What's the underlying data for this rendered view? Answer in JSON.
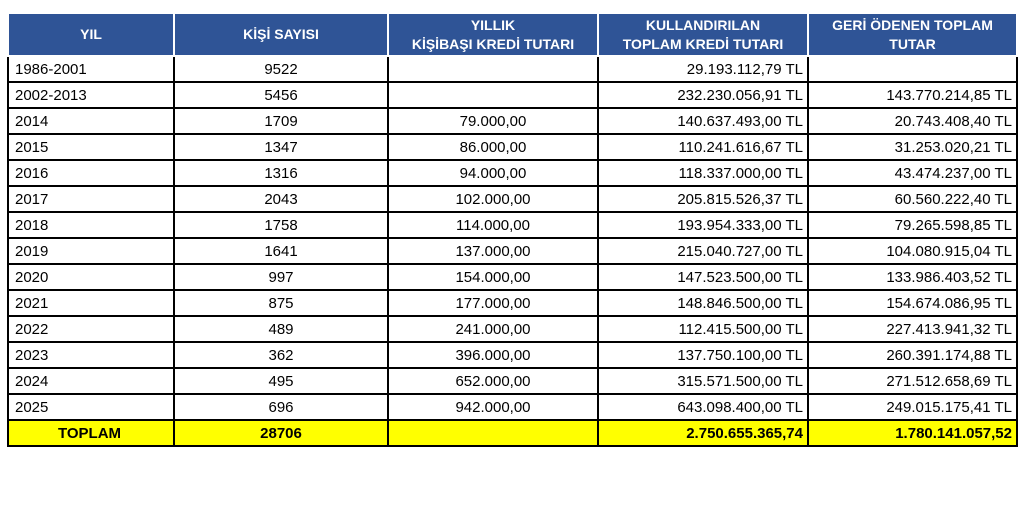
{
  "colors": {
    "header_bg": "#2F5496",
    "header_text": "#FFFFFF",
    "body_text": "#000000",
    "grid_border": "#000000",
    "totals_bg": "#FFFF00"
  },
  "chart_data": {
    "type": "table",
    "columns": [
      "YIL",
      "KİŞİ SAYISI",
      "YILLIK\nKİŞİBAŞI KREDİ TUTARI",
      "KULLANDIRILAN\nTOPLAM KREDİ TUTARI",
      "GERİ ÖDENEN TOPLAM\nTUTAR"
    ],
    "rows": [
      [
        "1986-2001",
        "9522",
        "",
        "29.193.112,79 TL",
        ""
      ],
      [
        "2002-2013",
        "5456",
        "",
        "232.230.056,91 TL",
        "143.770.214,85 TL"
      ],
      [
        "2014",
        "1709",
        "79.000,00",
        "140.637.493,00 TL",
        "20.743.408,40 TL"
      ],
      [
        "2015",
        "1347",
        "86.000,00",
        "110.241.616,67 TL",
        "31.253.020,21 TL"
      ],
      [
        "2016",
        "1316",
        "94.000,00",
        "118.337.000,00 TL",
        "43.474.237,00 TL"
      ],
      [
        "2017",
        "2043",
        "102.000,00",
        "205.815.526,37 TL",
        "60.560.222,40 TL"
      ],
      [
        "2018",
        "1758",
        "114.000,00",
        "193.954.333,00 TL",
        "79.265.598,85 TL"
      ],
      [
        "2019",
        "1641",
        "137.000,00",
        "215.040.727,00 TL",
        "104.080.915,04 TL"
      ],
      [
        "2020",
        "997",
        "154.000,00",
        "147.523.500,00 TL",
        "133.986.403,52 TL"
      ],
      [
        "2021",
        "875",
        "177.000,00",
        "148.846.500,00 TL",
        "154.674.086,95 TL"
      ],
      [
        "2022",
        "489",
        "241.000,00",
        "112.415.500,00 TL",
        "227.413.941,32 TL"
      ],
      [
        "2023",
        "362",
        "396.000,00",
        "137.750.100,00 TL",
        "260.391.174,88 TL"
      ],
      [
        "2024",
        "495",
        "652.000,00",
        "315.571.500,00 TL",
        "271.512.658,69 TL"
      ],
      [
        "2025",
        "696",
        "942.000,00",
        "643.098.400,00 TL",
        "249.015.175,41 TL"
      ]
    ],
    "totals_row": [
      "TOPLAM",
      "28706",
      "",
      "2.750.655.365,74",
      "1.780.141.057,52"
    ]
  }
}
